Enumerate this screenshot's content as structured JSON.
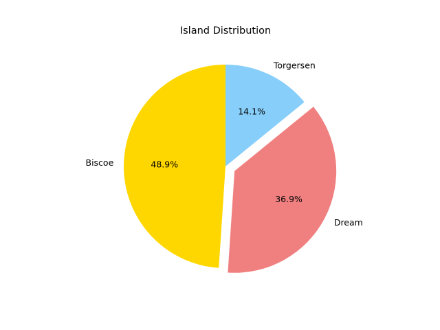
{
  "chart_data": {
    "type": "pie",
    "title": "Island Distribution",
    "categories": [
      "Torgersen",
      "Dream",
      "Biscoe"
    ],
    "values": [
      14.1,
      36.9,
      48.9
    ],
    "percent_labels": [
      "14.1%",
      "36.9%",
      "48.9%"
    ],
    "colors": [
      "#87CEFA",
      "#F08080",
      "#FFD700"
    ],
    "exploded": [
      "Dream"
    ],
    "start_angle_deg": 90,
    "direction": "clockwise",
    "legend": "none"
  }
}
